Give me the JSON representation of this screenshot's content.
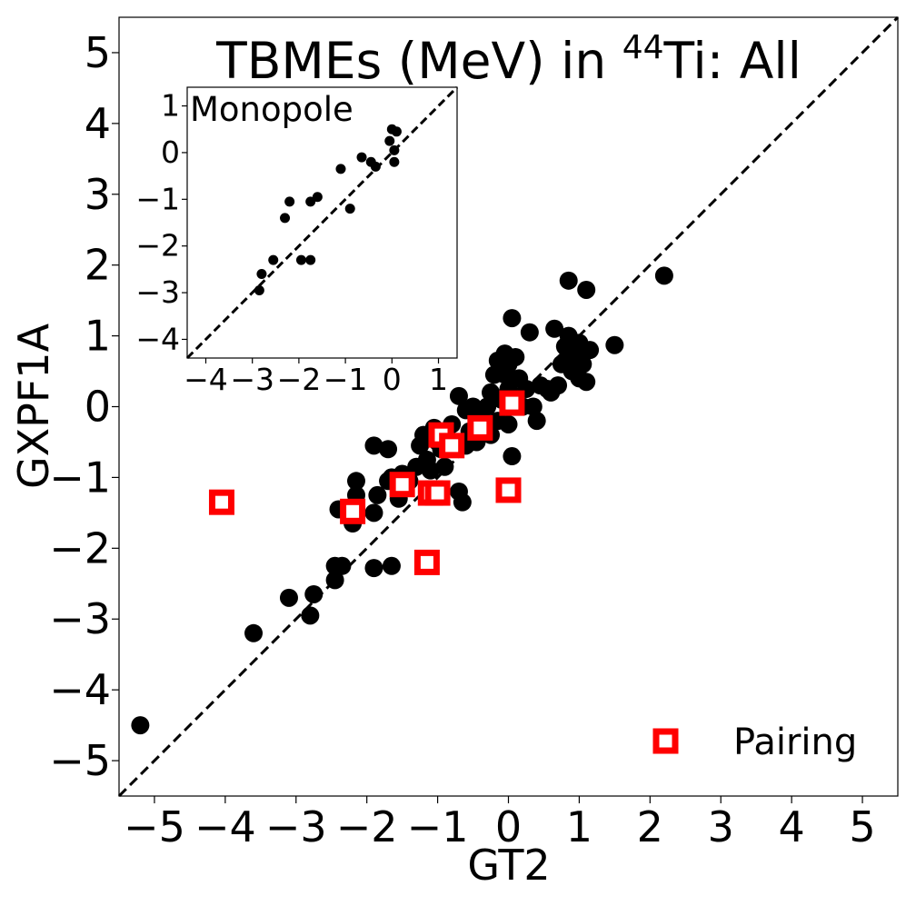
{
  "colors": {
    "points": "#000000",
    "pairing": "#ff0000",
    "diagonal": "#000000",
    "axes": "#000000"
  },
  "chart_data": [
    {
      "type": "scatter",
      "title": "TBMEs (MeV) in ⁴⁴Ti: All",
      "title_parts": {
        "prefix": "TBMEs (MeV) in ",
        "sup": "44",
        "suffix": "Ti: All"
      },
      "xlabel": "GT2",
      "ylabel": "GXPF1A",
      "xlim": [
        -5.5,
        5.5
      ],
      "ylim": [
        -5.5,
        5.5
      ],
      "x_ticks": [
        -5,
        -4,
        -3,
        -2,
        -1,
        0,
        1,
        2,
        3,
        4,
        5
      ],
      "y_ticks": [
        -5,
        -4,
        -3,
        -2,
        -1,
        0,
        1,
        2,
        3,
        4,
        5
      ],
      "grid": false,
      "diagonal": "y = x (dashed)",
      "legend": {
        "position": "bottom-right",
        "entries": [
          "Pairing"
        ]
      },
      "series": [
        {
          "marker": "circle",
          "points": [
            [
              -5.2,
              -4.5
            ],
            [
              -3.6,
              -3.2
            ],
            [
              -3.1,
              -2.7
            ],
            [
              -2.8,
              -2.95
            ],
            [
              -2.75,
              -2.65
            ],
            [
              -2.45,
              -2.45
            ],
            [
              -2.45,
              -2.25
            ],
            [
              -2.35,
              -2.25
            ],
            [
              -1.9,
              -2.28
            ],
            [
              -1.65,
              -2.25
            ],
            [
              -2.4,
              -1.45
            ],
            [
              -2.2,
              -1.45
            ],
            [
              -2.2,
              -1.65
            ],
            [
              -2.15,
              -1.25
            ],
            [
              -2.15,
              -1.05
            ],
            [
              -1.9,
              -1.5
            ],
            [
              -1.85,
              -1.25
            ],
            [
              -1.9,
              -0.55
            ],
            [
              -1.7,
              -0.6
            ],
            [
              -1.7,
              -1.05
            ],
            [
              -1.65,
              -1.0
            ],
            [
              -1.55,
              -1.3
            ],
            [
              -1.5,
              -0.95
            ],
            [
              -1.4,
              -1.05
            ],
            [
              -1.3,
              -0.85
            ],
            [
              -1.25,
              -0.55
            ],
            [
              -1.2,
              -0.4
            ],
            [
              -1.15,
              -0.75
            ],
            [
              -1.1,
              -0.9
            ],
            [
              -1.05,
              -0.3
            ],
            [
              -1.0,
              -0.5
            ],
            [
              -0.95,
              -0.6
            ],
            [
              -0.9,
              -0.85
            ],
            [
              -0.9,
              -0.35
            ],
            [
              -0.85,
              -0.45
            ],
            [
              -0.8,
              -0.25
            ],
            [
              -0.75,
              -0.55
            ],
            [
              -0.7,
              -1.2
            ],
            [
              -0.7,
              0.15
            ],
            [
              -0.65,
              -1.35
            ],
            [
              -0.6,
              -0.55
            ],
            [
              -0.6,
              -0.05
            ],
            [
              -0.55,
              -0.35
            ],
            [
              -0.5,
              0.0
            ],
            [
              -0.45,
              -0.5
            ],
            [
              -0.4,
              -0.15
            ],
            [
              -0.35,
              -0.3
            ],
            [
              -0.3,
              0.0
            ],
            [
              -0.25,
              -0.4
            ],
            [
              -0.25,
              0.2
            ],
            [
              -0.2,
              0.45
            ],
            [
              -0.15,
              -0.2
            ],
            [
              -0.15,
              0.65
            ],
            [
              -0.1,
              0.1
            ],
            [
              -0.05,
              0.45
            ],
            [
              -0.05,
              0.75
            ],
            [
              0.0,
              -0.25
            ],
            [
              0.0,
              0.25
            ],
            [
              0.0,
              0.6
            ],
            [
              0.05,
              -0.7
            ],
            [
              0.05,
              1.25
            ],
            [
              0.1,
              0.7
            ],
            [
              0.15,
              0.4
            ],
            [
              0.2,
              0.0
            ],
            [
              0.25,
              0.25
            ],
            [
              0.3,
              1.05
            ],
            [
              0.35,
              0.0
            ],
            [
              0.4,
              -0.2
            ],
            [
              0.45,
              0.3
            ],
            [
              0.55,
              0.25
            ],
            [
              0.65,
              1.1
            ],
            [
              0.6,
              0.2
            ],
            [
              0.7,
              0.3
            ],
            [
              0.75,
              0.6
            ],
            [
              0.8,
              0.85
            ],
            [
              0.85,
              1.0
            ],
            [
              0.85,
              0.7
            ],
            [
              0.9,
              0.5
            ],
            [
              0.95,
              0.8
            ],
            [
              1.0,
              0.9
            ],
            [
              1.05,
              0.6
            ],
            [
              1.0,
              0.4
            ],
            [
              0.85,
              1.78
            ],
            [
              1.1,
              1.65
            ],
            [
              1.1,
              0.35
            ],
            [
              1.15,
              0.8
            ],
            [
              1.5,
              0.87
            ],
            [
              2.2,
              1.85
            ]
          ]
        },
        {
          "name": "Pairing",
          "marker": "square",
          "points": [
            [
              -4.05,
              -1.35
            ],
            [
              -2.2,
              -1.48
            ],
            [
              -1.5,
              -1.1
            ],
            [
              -1.15,
              -2.2
            ],
            [
              -1.1,
              -1.22
            ],
            [
              -1.0,
              -1.22
            ],
            [
              -0.95,
              -0.4
            ],
            [
              -0.8,
              -0.55
            ],
            [
              -0.4,
              -0.3
            ],
            [
              0.0,
              -1.18
            ],
            [
              0.05,
              0.05
            ]
          ]
        }
      ]
    },
    {
      "type": "scatter",
      "title": "Monopole",
      "xlim": [
        -4.4,
        1.4
      ],
      "ylim": [
        -4.4,
        1.4
      ],
      "x_ticks": [
        -4,
        -3,
        -2,
        -1,
        0,
        1
      ],
      "y_ticks": [
        1,
        0,
        -1,
        -2,
        -3,
        -4
      ],
      "grid": false,
      "diagonal": "y = x (dashed)",
      "series": [
        {
          "marker": "circle",
          "points": [
            [
              -2.85,
              -2.95
            ],
            [
              -2.8,
              -2.6
            ],
            [
              -2.55,
              -2.3
            ],
            [
              -2.3,
              -1.4
            ],
            [
              -2.2,
              -1.05
            ],
            [
              -1.95,
              -2.3
            ],
            [
              -1.75,
              -2.3
            ],
            [
              -1.75,
              -1.05
            ],
            [
              -1.6,
              -0.95
            ],
            [
              -1.1,
              -0.35
            ],
            [
              -0.9,
              -1.2
            ],
            [
              -0.65,
              -0.1
            ],
            [
              -0.45,
              -0.2
            ],
            [
              -0.35,
              -0.3
            ],
            [
              -0.05,
              0.25
            ],
            [
              0.0,
              0.5
            ],
            [
              0.05,
              -0.2
            ],
            [
              0.05,
              0.05
            ],
            [
              0.1,
              0.45
            ]
          ]
        }
      ]
    }
  ]
}
